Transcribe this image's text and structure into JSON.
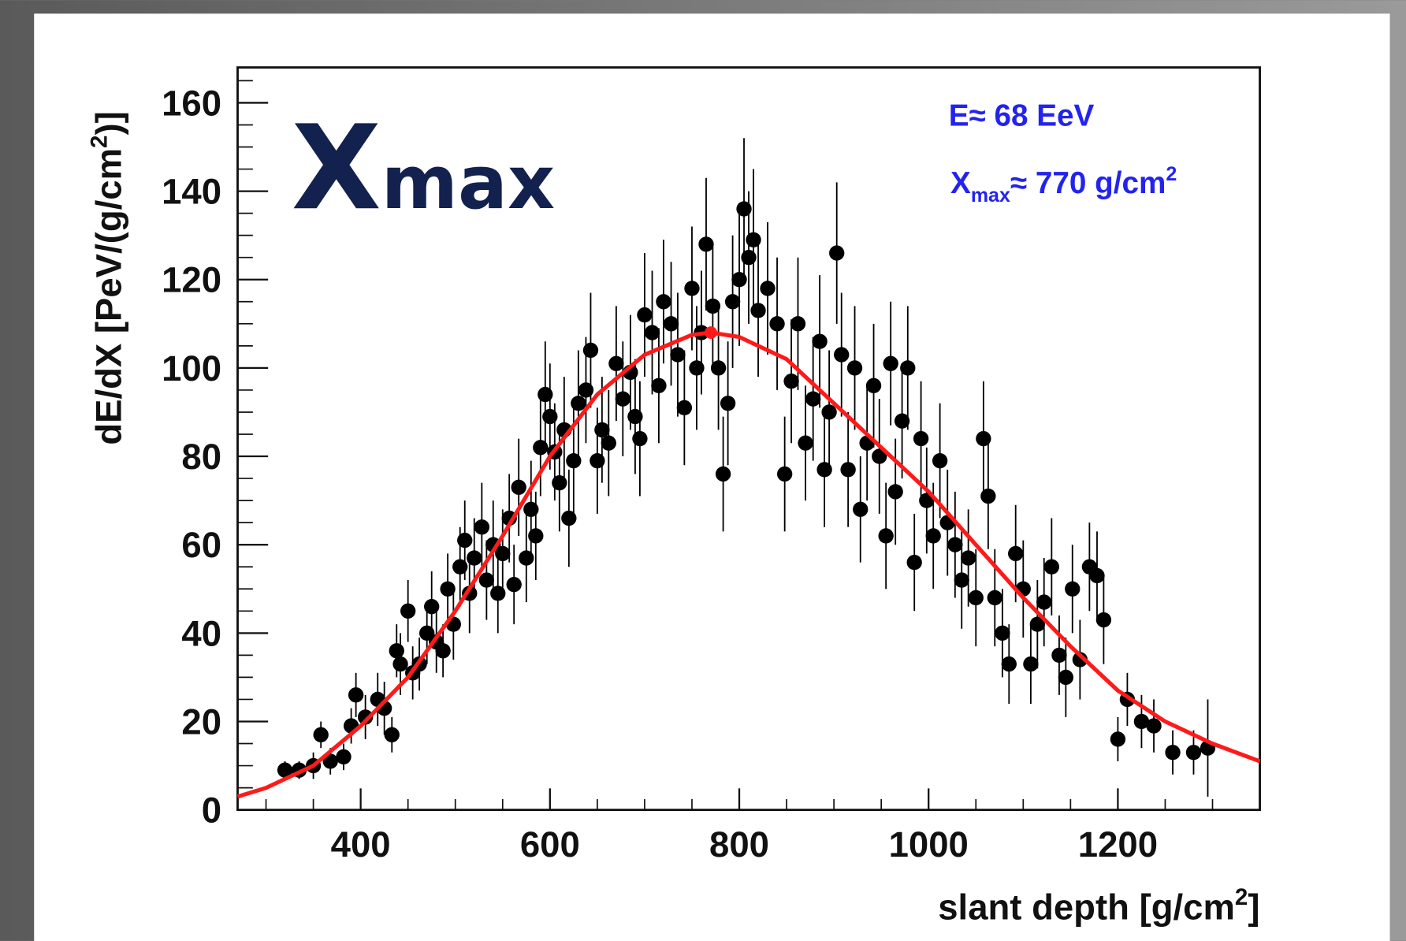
{
  "chart_data": {
    "type": "scatter",
    "title": {
      "main": "X",
      "sub": "max"
    },
    "annotations": [
      {
        "text": "E≈ 68 EeV"
      },
      {
        "text": "X",
        "sub": "max",
        "rest": "≈ 770 g/cm",
        "sup": "2"
      }
    ],
    "x_label": {
      "text": "slant depth [g/cm",
      "sup": "2",
      "end": "]"
    },
    "y_label": {
      "text": "dE/dX [PeV/(g/cm",
      "sup": "2",
      "end": ")]"
    },
    "xlim": [
      270,
      1350
    ],
    "ylim": [
      0,
      168
    ],
    "xticks": [
      400,
      600,
      800,
      1000,
      1200
    ],
    "yticks": [
      0,
      20,
      40,
      60,
      80,
      100,
      120,
      140,
      160
    ],
    "xticks_minor": [
      300,
      350,
      450,
      500,
      550,
      650,
      700,
      750,
      850,
      900,
      950,
      1050,
      1100,
      1150,
      1250,
      1300
    ],
    "yticks_minor": [
      5,
      10,
      15,
      25,
      30,
      35,
      45,
      50,
      55,
      65,
      70,
      75,
      85,
      90,
      95,
      105,
      110,
      115,
      125,
      130,
      135,
      145,
      150,
      155,
      165
    ],
    "series": [
      {
        "color": "#000000",
        "x": [
          320,
          335,
          350,
          358,
          368,
          382,
          390,
          395,
          405,
          418,
          425,
          433,
          438,
          442,
          450,
          455,
          462,
          470,
          475,
          480,
          487,
          492,
          498,
          505,
          510,
          515,
          520,
          528,
          533,
          540,
          545,
          550,
          557,
          562,
          567,
          575,
          580,
          585,
          590,
          595,
          600,
          605,
          610,
          615,
          620,
          625,
          630,
          638,
          643,
          650,
          655,
          662,
          670,
          677,
          685,
          690,
          695,
          700,
          708,
          715,
          720,
          728,
          735,
          742,
          750,
          755,
          760,
          765,
          772,
          778,
          783,
          788,
          793,
          800,
          805,
          810,
          815,
          820,
          830,
          840,
          848,
          855,
          862,
          870,
          878,
          885,
          890,
          895,
          903,
          908,
          915,
          922,
          928,
          935,
          942,
          948,
          955,
          960,
          965,
          972,
          978,
          985,
          992,
          998,
          1005,
          1012,
          1020,
          1028,
          1035,
          1042,
          1050,
          1058,
          1063,
          1070,
          1078,
          1085,
          1092,
          1100,
          1108,
          1115,
          1122,
          1130,
          1138,
          1145,
          1152,
          1160,
          1170,
          1178,
          1185,
          1200,
          1210,
          1225,
          1238,
          1258,
          1280,
          1295
        ],
        "values": [
          9,
          9,
          10,
          17,
          11,
          12,
          19,
          26,
          21,
          25,
          23,
          17,
          36,
          33,
          45,
          31,
          33,
          40,
          46,
          38,
          36,
          50,
          42,
          55,
          61,
          49,
          57,
          64,
          52,
          60,
          49,
          58,
          66,
          51,
          73,
          57,
          68,
          62,
          82,
          94,
          89,
          81,
          74,
          86,
          66,
          79,
          92,
          95,
          104,
          79,
          86,
          83,
          101,
          93,
          99,
          89,
          84,
          112,
          108,
          96,
          115,
          110,
          103,
          91,
          118,
          100,
          108,
          128,
          114,
          100,
          76,
          92,
          115,
          120,
          136,
          125,
          129,
          113,
          118,
          110,
          76,
          97,
          110,
          83,
          93,
          106,
          77,
          90,
          126,
          103,
          77,
          100,
          68,
          83,
          96,
          80,
          62,
          101,
          72,
          88,
          100,
          56,
          84,
          70,
          62,
          79,
          65,
          60,
          52,
          57,
          48,
          84,
          71,
          48,
          40,
          33,
          58,
          50,
          33,
          42,
          47,
          55,
          35,
          30,
          50,
          34,
          55,
          53,
          43,
          16,
          25,
          20,
          19,
          13,
          13,
          14
        ],
        "errors": [
          2,
          2,
          3,
          3,
          3,
          3,
          4,
          5,
          5,
          6,
          6,
          4,
          6,
          7,
          7,
          6,
          6,
          7,
          8,
          7,
          6,
          8,
          8,
          9,
          9,
          9,
          9,
          10,
          9,
          10,
          9,
          10,
          10,
          9,
          11,
          10,
          11,
          10,
          11,
          12,
          12,
          11,
          11,
          12,
          11,
          12,
          12,
          12,
          13,
          12,
          12,
          12,
          13,
          13,
          13,
          13,
          13,
          14,
          14,
          13,
          14,
          14,
          14,
          13,
          14,
          14,
          14,
          15,
          14,
          14,
          13,
          14,
          15,
          15,
          16,
          15,
          16,
          15,
          15,
          15,
          13,
          14,
          15,
          13,
          14,
          15,
          13,
          14,
          16,
          14,
          13,
          14,
          12,
          13,
          14,
          13,
          12,
          14,
          12,
          13,
          14,
          11,
          13,
          12,
          12,
          13,
          12,
          12,
          11,
          11,
          11,
          13,
          12,
          11,
          10,
          9,
          11,
          11,
          9,
          10,
          10,
          11,
          9,
          9,
          10,
          9,
          10,
          10,
          10,
          5,
          6,
          6,
          6,
          5,
          5,
          11
        ]
      },
      {
        "color": "#ff1a1a",
        "x": [
          270,
          300,
          350,
          400,
          450,
          500,
          550,
          600,
          650,
          700,
          750,
          770,
          800,
          850,
          900,
          950,
          1000,
          1050,
          1100,
          1150,
          1200,
          1250,
          1300,
          1350
        ],
        "values": [
          3,
          5,
          10,
          19,
          30,
          45,
          62,
          80,
          94,
          103,
          107.5,
          108,
          107,
          102,
          92,
          82,
          72,
          60,
          48,
          37,
          27,
          20,
          15,
          11
        ]
      }
    ],
    "xmax_marker": {
      "x": 770,
      "y": 108,
      "color": "#ff1a1a"
    }
  }
}
